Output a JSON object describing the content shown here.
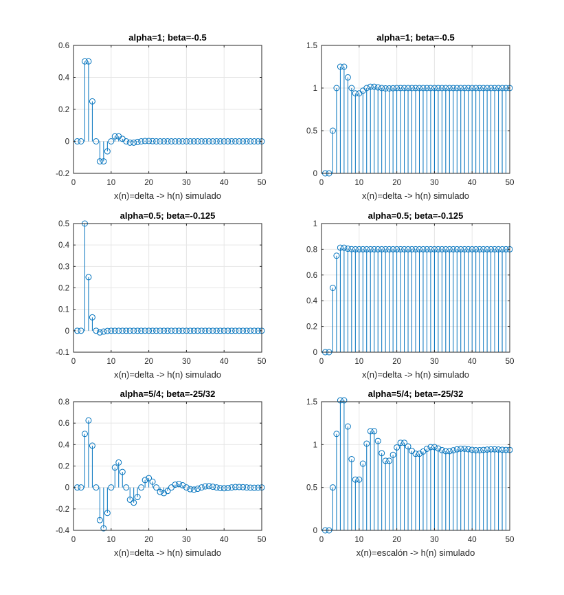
{
  "figure": {
    "background": "#ffffff",
    "stem_color": "#0072BD",
    "axis_color": "#262626",
    "grid_color": "#e6e6e6"
  },
  "chart_data": [
    {
      "type": "stem",
      "title": "alpha=1; beta=-0.5",
      "xlabel": "x(n)=delta -> h(n) simulado",
      "xlim": [
        0,
        50
      ],
      "ylim": [
        -0.2,
        0.6
      ],
      "xticks": [
        "0",
        "10",
        "20",
        "30",
        "40",
        "50"
      ],
      "yticks": [
        "-0.2",
        "0",
        "0.2",
        "0.4",
        "0.6"
      ],
      "grid": true,
      "x": [
        1,
        2,
        3,
        4,
        5,
        6,
        7,
        8,
        9,
        10,
        11,
        12,
        13,
        14,
        15,
        16,
        17,
        18,
        19,
        20,
        21,
        22,
        23,
        24,
        25,
        26,
        27,
        28,
        29,
        30,
        31,
        32,
        33,
        34,
        35,
        36,
        37,
        38,
        39,
        40,
        41,
        42,
        43,
        44,
        45,
        46,
        47,
        48,
        49,
        50
      ],
      "values": [
        0,
        0,
        0.5,
        0.5,
        0.25,
        0,
        -0.125,
        -0.125,
        -0.0625,
        0,
        0.03125,
        0.03125,
        0.015625,
        0,
        -0.0078,
        -0.0078,
        -0.0039,
        0,
        0.002,
        0.002,
        0.001,
        0,
        0,
        0,
        0,
        0,
        0,
        0,
        0,
        0,
        0,
        0,
        0,
        0,
        0,
        0,
        0,
        0,
        0,
        0,
        0,
        0,
        0,
        0,
        0,
        0,
        0,
        0,
        0,
        0
      ]
    },
    {
      "type": "stem",
      "title": "alpha=1; beta=-0.5",
      "xlabel": "x(n)=delta -> h(n) simulado",
      "xlim": [
        0,
        50
      ],
      "ylim": [
        0,
        1.5
      ],
      "xticks": [
        "0",
        "10",
        "20",
        "30",
        "40",
        "50"
      ],
      "yticks": [
        "0",
        "0.5",
        "1",
        "1.5"
      ],
      "grid": true,
      "x": [
        1,
        2,
        3,
        4,
        5,
        6,
        7,
        8,
        9,
        10,
        11,
        12,
        13,
        14,
        15,
        16,
        17,
        18,
        19,
        20,
        21,
        22,
        23,
        24,
        25,
        26,
        27,
        28,
        29,
        30,
        31,
        32,
        33,
        34,
        35,
        36,
        37,
        38,
        39,
        40,
        41,
        42,
        43,
        44,
        45,
        46,
        47,
        48,
        49,
        50
      ],
      "values": [
        0,
        0,
        0.5,
        1,
        1.25,
        1.25,
        1.125,
        1,
        0.9375,
        0.9375,
        0.96875,
        1,
        1.015625,
        1.015625,
        1.0078,
        1,
        0.9961,
        0.9961,
        0.998,
        1,
        1,
        1,
        1,
        1,
        1,
        1,
        1,
        1,
        1,
        1,
        1,
        1,
        1,
        1,
        1,
        1,
        1,
        1,
        1,
        1,
        1,
        1,
        1,
        1,
        1,
        1,
        1,
        1,
        1,
        1
      ]
    },
    {
      "type": "stem",
      "title": "alpha=0.5; beta=-0.125",
      "xlabel": "x(n)=delta -> h(n) simulado",
      "xlim": [
        0,
        50
      ],
      "ylim": [
        -0.1,
        0.5
      ],
      "xticks": [
        "0",
        "10",
        "20",
        "30",
        "40",
        "50"
      ],
      "yticks": [
        "-0.1",
        "0",
        "0.1",
        "0.2",
        "0.3",
        "0.4",
        "0.5"
      ],
      "grid": true,
      "x": [
        1,
        2,
        3,
        4,
        5,
        6,
        7,
        8,
        9,
        10,
        11,
        12,
        13,
        14,
        15,
        16,
        17,
        18,
        19,
        20,
        21,
        22,
        23,
        24,
        25,
        26,
        27,
        28,
        29,
        30,
        31,
        32,
        33,
        34,
        35,
        36,
        37,
        38,
        39,
        40,
        41,
        42,
        43,
        44,
        45,
        46,
        47,
        48,
        49,
        50
      ],
      "values": [
        0,
        0,
        0.5,
        0.25,
        0.0625,
        0,
        -0.0078,
        -0.0039,
        -0.001,
        0,
        0,
        0,
        0,
        0,
        0,
        0,
        0,
        0,
        0,
        0,
        0,
        0,
        0,
        0,
        0,
        0,
        0,
        0,
        0,
        0,
        0,
        0,
        0,
        0,
        0,
        0,
        0,
        0,
        0,
        0,
        0,
        0,
        0,
        0,
        0,
        0,
        0,
        0,
        0,
        0
      ]
    },
    {
      "type": "stem",
      "title": "alpha=0.5; beta=-0.125",
      "xlabel": "x(n)=delta -> h(n) simulado",
      "xlim": [
        0,
        50
      ],
      "ylim": [
        0,
        1
      ],
      "xticks": [
        "0",
        "10",
        "20",
        "30",
        "40",
        "50"
      ],
      "yticks": [
        "0",
        "0.2",
        "0.4",
        "0.6",
        "0.8",
        "1"
      ],
      "grid": true,
      "x": [
        1,
        2,
        3,
        4,
        5,
        6,
        7,
        8,
        9,
        10,
        11,
        12,
        13,
        14,
        15,
        16,
        17,
        18,
        19,
        20,
        21,
        22,
        23,
        24,
        25,
        26,
        27,
        28,
        29,
        30,
        31,
        32,
        33,
        34,
        35,
        36,
        37,
        38,
        39,
        40,
        41,
        42,
        43,
        44,
        45,
        46,
        47,
        48,
        49,
        50
      ],
      "values": [
        0,
        0,
        0.5,
        0.75,
        0.8125,
        0.8125,
        0.8047,
        0.8008,
        0.7998,
        0.8,
        0.8,
        0.8,
        0.8,
        0.8,
        0.8,
        0.8,
        0.8,
        0.8,
        0.8,
        0.8,
        0.8,
        0.8,
        0.8,
        0.8,
        0.8,
        0.8,
        0.8,
        0.8,
        0.8,
        0.8,
        0.8,
        0.8,
        0.8,
        0.8,
        0.8,
        0.8,
        0.8,
        0.8,
        0.8,
        0.8,
        0.8,
        0.8,
        0.8,
        0.8,
        0.8,
        0.8,
        0.8,
        0.8,
        0.8,
        0.8
      ]
    },
    {
      "type": "stem",
      "title": "alpha=5/4; beta=-25/32",
      "xlabel": "x(n)=delta -> h(n) simulado",
      "xlim": [
        0,
        50
      ],
      "ylim": [
        -0.4,
        0.8
      ],
      "xticks": [
        "0",
        "10",
        "20",
        "30",
        "40",
        "50"
      ],
      "yticks": [
        "-0.4",
        "-0.2",
        "0",
        "0.2",
        "0.4",
        "0.6",
        "0.8"
      ],
      "grid": true,
      "x": [
        1,
        2,
        3,
        4,
        5,
        6,
        7,
        8,
        9,
        10,
        11,
        12,
        13,
        14,
        15,
        16,
        17,
        18,
        19,
        20,
        21,
        22,
        23,
        24,
        25,
        26,
        27,
        28,
        29,
        30,
        31,
        32,
        33,
        34,
        35,
        36,
        37,
        38,
        39,
        40,
        41,
        42,
        43,
        44,
        45,
        46,
        47,
        48,
        49,
        50
      ],
      "values": [
        0,
        0,
        0.5,
        0.625,
        0.39,
        0,
        -0.305,
        -0.381,
        -0.238,
        0,
        0.186,
        0.233,
        0.145,
        0,
        -0.114,
        -0.142,
        -0.089,
        0,
        0.069,
        0.087,
        0.054,
        0,
        -0.042,
        -0.053,
        -0.033,
        0,
        0.026,
        0.032,
        0.02,
        0,
        -0.016,
        -0.02,
        -0.012,
        0,
        0.01,
        0.012,
        0.007,
        0,
        -0.006,
        -0.007,
        -0.005,
        0,
        0.004,
        0.004,
        0.003,
        0,
        -0.002,
        -0.003,
        -0.002,
        0
      ]
    },
    {
      "type": "stem",
      "title": "alpha=5/4; beta=-25/32",
      "xlabel": "x(n)=escalón -> h(n) simulado",
      "xlim": [
        0,
        50
      ],
      "ylim": [
        0,
        1.5
      ],
      "xticks": [
        "0",
        "10",
        "20",
        "30",
        "40",
        "50"
      ],
      "yticks": [
        "0",
        "0.5",
        "1",
        "1.5"
      ],
      "grid": true,
      "x": [
        1,
        2,
        3,
        4,
        5,
        6,
        7,
        8,
        9,
        10,
        11,
        12,
        13,
        14,
        15,
        16,
        17,
        18,
        19,
        20,
        21,
        22,
        23,
        24,
        25,
        26,
        27,
        28,
        29,
        30,
        31,
        32,
        33,
        34,
        35,
        36,
        37,
        38,
        39,
        40,
        41,
        42,
        43,
        44,
        45,
        46,
        47,
        48,
        49,
        50
      ],
      "values": [
        0,
        0,
        0.5,
        1.125,
        1.516,
        1.516,
        1.211,
        0.83,
        0.592,
        0.592,
        0.778,
        1.011,
        1.156,
        1.156,
        1.042,
        0.9,
        0.811,
        0.811,
        0.88,
        0.967,
        1.021,
        1.021,
        0.979,
        0.926,
        0.893,
        0.893,
        0.919,
        0.951,
        0.971,
        0.971,
        0.955,
        0.935,
        0.923,
        0.923,
        0.933,
        0.945,
        0.952,
        0.952,
        0.946,
        0.939,
        0.934,
        0.934,
        0.938,
        0.942,
        0.945,
        0.945,
        0.943,
        0.94,
        0.938,
        0.938
      ]
    }
  ]
}
